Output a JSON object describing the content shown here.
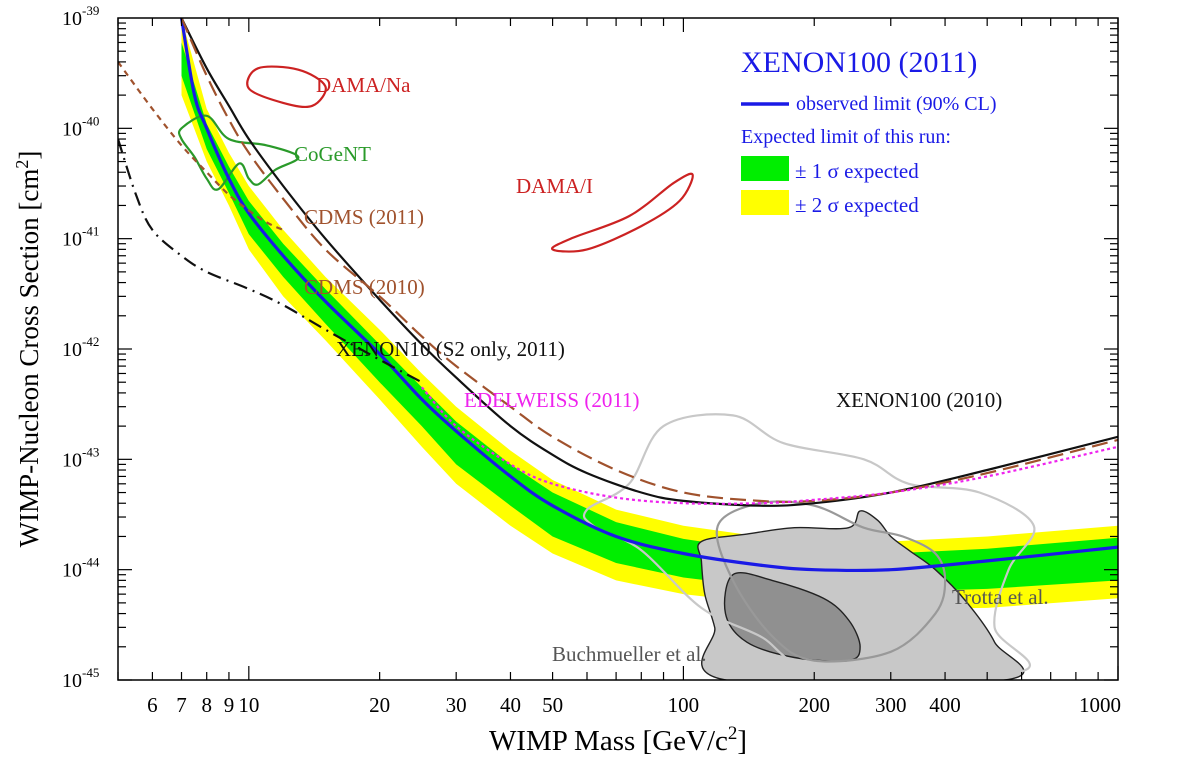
{
  "chart_data": {
    "type": "line",
    "title": "",
    "xlabel": "WIMP Mass [GeV/c2]",
    "ylabel": "WIMP-Nucleon Cross Section [cm2]",
    "x_scale": "log",
    "y_scale": "log",
    "xlim": [
      5,
      1000
    ],
    "ylim": [
      1e-45,
      1e-39
    ],
    "x_ticks": [
      6,
      7,
      8,
      9,
      10,
      20,
      30,
      40,
      50,
      100,
      200,
      300,
      400,
      1000
    ],
    "x_tick_labels": [
      "6",
      "7",
      "8",
      "9",
      "10",
      "20",
      "30",
      "40",
      "50",
      "100",
      "200",
      "300",
      "400",
      "1000"
    ],
    "y_ticks": [
      1e-45,
      1e-44,
      1e-43,
      1e-42,
      1e-41,
      1e-40,
      1e-39
    ],
    "y_tick_base": "10",
    "y_tick_exponents": [
      "-45",
      "-44",
      "-43",
      "-42",
      "-41",
      "-40",
      "-39"
    ],
    "legend": {
      "position": "top-right",
      "title": "XENON100 (2011)",
      "items": [
        {
          "label": "observed limit (90% CL)",
          "kind": "line",
          "color": "#1a1ae6"
        },
        {
          "label": "Expected limit of this run:",
          "kind": "text"
        },
        {
          "label": "± 1 σ expected",
          "kind": "box",
          "color": "#00ee00"
        },
        {
          "label": "± 2 σ expected",
          "kind": "box",
          "color": "#ffff00"
        }
      ]
    },
    "annotations": [
      {
        "label": "DAMA/Na",
        "color": "#cc2222"
      },
      {
        "label": "CoGeNT",
        "color": "#2a9a2a"
      },
      {
        "label": "DAMA/I",
        "color": "#cc2222"
      },
      {
        "label": "CDMS (2011)",
        "color": "#a0522d"
      },
      {
        "label": "CDMS (2010)",
        "color": "#a0522d"
      },
      {
        "label": "XENON10 (S2 only, 2011)",
        "color": "#111111"
      },
      {
        "label": "EDELWEISS (2011)",
        "color": "#ee22ee"
      },
      {
        "label": "XENON100 (2010)",
        "color": "#111111"
      },
      {
        "label": "Trotta et al.",
        "color": "#555555"
      },
      {
        "label": "Buchmueller et al.",
        "color": "#555555"
      }
    ],
    "series": [
      {
        "name": "observed limit (90% CL)",
        "style": "solid",
        "color": "#1a1ae6",
        "points": [
          [
            7,
            1e-39
          ],
          [
            7.5,
            2e-40
          ],
          [
            8,
            1e-40
          ],
          [
            9,
            3.5e-41
          ],
          [
            10,
            1.7e-41
          ],
          [
            12,
            7e-42
          ],
          [
            15,
            2.7e-42
          ],
          [
            20,
            9e-43
          ],
          [
            25,
            3.5e-43
          ],
          [
            30,
            1.8e-43
          ],
          [
            40,
            7e-44
          ],
          [
            50,
            3.8e-44
          ],
          [
            70,
            2e-44
          ],
          [
            100,
            1.4e-44
          ],
          [
            150,
            1.1e-44
          ],
          [
            200,
            1e-44
          ],
          [
            300,
            1e-44
          ],
          [
            500,
            1.2e-44
          ],
          [
            1000,
            1.6e-44
          ]
        ]
      },
      {
        "name": "XENON100 (2010)",
        "style": "solid",
        "color": "#111111",
        "points": [
          [
            7,
            1e-39
          ],
          [
            8,
            3.5e-40
          ],
          [
            9,
            1.6e-40
          ],
          [
            10,
            8e-41
          ],
          [
            12,
            3e-41
          ],
          [
            15,
            1e-41
          ],
          [
            20,
            2.8e-42
          ],
          [
            25,
            1.1e-42
          ],
          [
            30,
            5.5e-43
          ],
          [
            40,
            2e-43
          ],
          [
            50,
            1.1e-43
          ],
          [
            60,
            7.5e-44
          ],
          [
            80,
            5e-44
          ],
          [
            100,
            4.2e-44
          ],
          [
            150,
            3.8e-44
          ],
          [
            200,
            4e-44
          ],
          [
            300,
            5e-44
          ],
          [
            500,
            8e-44
          ],
          [
            1000,
            1.6e-43
          ]
        ]
      },
      {
        "name": "CDMS (2010)",
        "style": "long-dash",
        "color": "#a0522d",
        "points": [
          [
            7,
            1e-39
          ],
          [
            8,
            3e-40
          ],
          [
            9,
            1.2e-40
          ],
          [
            10,
            6e-41
          ],
          [
            12,
            2.3e-41
          ],
          [
            15,
            8e-42
          ],
          [
            20,
            3e-42
          ],
          [
            25,
            1.3e-42
          ],
          [
            30,
            7e-43
          ],
          [
            40,
            3e-43
          ],
          [
            50,
            1.6e-43
          ],
          [
            70,
            8e-44
          ],
          [
            100,
            5e-44
          ],
          [
            150,
            4.2e-44
          ],
          [
            200,
            4.2e-44
          ],
          [
            300,
            5e-44
          ],
          [
            500,
            7.5e-44
          ],
          [
            1000,
            1.5e-43
          ]
        ]
      },
      {
        "name": "CDMS (2011)",
        "style": "short-dash",
        "color": "#a0522d",
        "points": [
          [
            5,
            4e-40
          ],
          [
            6,
            1.5e-40
          ],
          [
            7,
            7e-41
          ],
          [
            8,
            4e-41
          ],
          [
            9,
            2.5e-41
          ],
          [
            10,
            1.8e-41
          ],
          [
            11,
            1.4e-41
          ],
          [
            12,
            1.2e-41
          ]
        ]
      },
      {
        "name": "XENON10 (S2 only, 2011)",
        "style": "dash-dot",
        "color": "#111111",
        "points": [
          [
            5,
            8e-41
          ],
          [
            5.5,
            2.5e-41
          ],
          [
            6,
            1.2e-41
          ],
          [
            7,
            7e-42
          ],
          [
            8,
            5e-42
          ],
          [
            10,
            3.5e-42
          ],
          [
            12,
            2.5e-42
          ],
          [
            15,
            1.5e-42
          ],
          [
            20,
            8e-43
          ],
          [
            25,
            5e-43
          ]
        ]
      },
      {
        "name": "EDELWEISS (2011)",
        "style": "dotted",
        "color": "#ee22ee",
        "points": [
          [
            25,
            4.5e-43
          ],
          [
            30,
            2e-43
          ],
          [
            40,
            9e-44
          ],
          [
            50,
            6e-44
          ],
          [
            70,
            4.5e-44
          ],
          [
            100,
            4e-44
          ],
          [
            150,
            4e-44
          ],
          [
            200,
            4.3e-44
          ],
          [
            300,
            5e-44
          ],
          [
            500,
            7e-44
          ],
          [
            1000,
            1.3e-43
          ]
        ]
      }
    ],
    "bands": [
      {
        "name": "± 2 σ expected",
        "color": "#ffff00",
        "upper": [
          [
            7,
            1e-39
          ],
          [
            8,
            1.5e-40
          ],
          [
            9,
            6e-41
          ],
          [
            10,
            3e-41
          ],
          [
            12,
            1.2e-41
          ],
          [
            15,
            4.5e-42
          ],
          [
            20,
            1.5e-42
          ],
          [
            25,
            6e-43
          ],
          [
            30,
            3e-43
          ],
          [
            40,
            1.2e-43
          ],
          [
            50,
            6.5e-44
          ],
          [
            70,
            3.5e-44
          ],
          [
            100,
            2.5e-44
          ],
          [
            150,
            2e-44
          ],
          [
            200,
            1.8e-44
          ],
          [
            300,
            1.8e-44
          ],
          [
            500,
            2e-44
          ],
          [
            1000,
            2.5e-44
          ]
        ],
        "lower": [
          [
            7,
            2e-40
          ],
          [
            8,
            5e-41
          ],
          [
            9,
            2e-41
          ],
          [
            10,
            8e-42
          ],
          [
            12,
            3e-42
          ],
          [
            15,
            1.2e-42
          ],
          [
            20,
            3.5e-43
          ],
          [
            25,
            1.3e-43
          ],
          [
            30,
            6e-44
          ],
          [
            40,
            2.5e-44
          ],
          [
            50,
            1.4e-44
          ],
          [
            70,
            8e-45
          ],
          [
            100,
            6e-45
          ],
          [
            150,
            5e-45
          ],
          [
            200,
            4.6e-45
          ],
          [
            300,
            4.4e-45
          ],
          [
            500,
            4.5e-45
          ],
          [
            1000,
            5.5e-45
          ]
        ]
      },
      {
        "name": "± 1 σ expected",
        "color": "#00ee00",
        "upper": [
          [
            7,
            6e-40
          ],
          [
            8,
            1.1e-40
          ],
          [
            9,
            4.5e-41
          ],
          [
            10,
            2.2e-41
          ],
          [
            12,
            9e-42
          ],
          [
            15,
            3.5e-42
          ],
          [
            20,
            1.1e-42
          ],
          [
            25,
            4.5e-43
          ],
          [
            30,
            2.2e-43
          ],
          [
            40,
            9e-44
          ],
          [
            50,
            5e-44
          ],
          [
            70,
            2.7e-44
          ],
          [
            100,
            1.9e-44
          ],
          [
            150,
            1.5e-44
          ],
          [
            200,
            1.4e-44
          ],
          [
            300,
            1.4e-44
          ],
          [
            500,
            1.55e-44
          ],
          [
            1000,
            1.95e-44
          ]
        ],
        "lower": [
          [
            7,
            3e-40
          ],
          [
            8,
            6.5e-41
          ],
          [
            9,
            2.6e-41
          ],
          [
            10,
            1.1e-41
          ],
          [
            12,
            4.5e-42
          ],
          [
            15,
            1.7e-42
          ],
          [
            20,
            5e-43
          ],
          [
            25,
            2e-43
          ],
          [
            30,
            9e-44
          ],
          [
            40,
            3.8e-44
          ],
          [
            50,
            2e-44
          ],
          [
            70,
            1.15e-44
          ],
          [
            100,
            8.5e-45
          ],
          [
            150,
            7e-45
          ],
          [
            200,
            6.5e-45
          ],
          [
            300,
            6.3e-45
          ],
          [
            500,
            6.7e-45
          ],
          [
            1000,
            8e-45
          ]
        ]
      }
    ],
    "regions": [
      {
        "name": "DAMA/Na",
        "color": "#cc2222",
        "fill": "none",
        "points": [
          [
            10.5,
            3.5e-40
          ],
          [
            13,
            3.4e-40
          ],
          [
            15,
            2.4e-40
          ],
          [
            14,
            1.6e-40
          ],
          [
            12,
            1.7e-40
          ],
          [
            10,
            2.3e-40
          ]
        ]
      },
      {
        "name": "CoGeNT",
        "color": "#2a9a2a",
        "fill": "none",
        "points": [
          [
            7,
            1e-40
          ],
          [
            8,
            1.3e-40
          ],
          [
            9,
            8e-41
          ],
          [
            11,
            7e-41
          ],
          [
            13,
            5.5e-41
          ],
          [
            11.5,
            4.2e-41
          ],
          [
            10.5,
            3.1e-41
          ],
          [
            10,
            3.5e-41
          ],
          [
            9.5,
            4.8e-41
          ],
          [
            8.5,
            2.8e-41
          ],
          [
            8,
            3.5e-41
          ],
          [
            7.5,
            5.5e-41
          ],
          [
            7,
            8e-41
          ]
        ]
      },
      {
        "name": "DAMA/I",
        "color": "#cc2222",
        "fill": "none",
        "points": [
          [
            55,
            1e-41
          ],
          [
            75,
            1.6e-41
          ],
          [
            95,
            3.2e-41
          ],
          [
            105,
            3.8e-41
          ],
          [
            98,
            2.2e-41
          ],
          [
            80,
            1.3e-41
          ],
          [
            60,
            8e-42
          ],
          [
            50,
            8e-42
          ]
        ]
      },
      {
        "name": "Buchmueller et al. (outer)",
        "color": "#222222",
        "fill": "#c8c8c8",
        "points": [
          [
            110,
            1.8e-44
          ],
          [
            140,
            2.1e-44
          ],
          [
            180,
            2.4e-44
          ],
          [
            240,
            2.4e-44
          ],
          [
            255,
            3.4e-44
          ],
          [
            280,
            2.8e-44
          ],
          [
            300,
            2e-44
          ],
          [
            330,
            1.5e-44
          ],
          [
            380,
            1e-44
          ],
          [
            450,
            5e-45
          ],
          [
            520,
            2.2e-45
          ],
          [
            550,
            1e-45
          ],
          [
            125,
            1e-45
          ],
          [
            118,
            3e-45
          ],
          [
            112,
            6e-45
          ],
          [
            110,
            1.2e-44
          ]
        ]
      },
      {
        "name": "Buchmueller et al. (inner)",
        "color": "#222222",
        "fill": "#909090",
        "points": [
          [
            130,
            9e-45
          ],
          [
            160,
            8e-45
          ],
          [
            210,
            5.5e-45
          ],
          [
            240,
            3.5e-45
          ],
          [
            255,
            2e-45
          ],
          [
            240,
            1.5e-45
          ],
          [
            180,
            1.6e-45
          ],
          [
            140,
            2.2e-45
          ],
          [
            125,
            4e-45
          ]
        ]
      },
      {
        "name": "Trotta et al. (95%)",
        "color": "#c8c8c8",
        "fill": "none",
        "points": [
          [
            60,
            3.5e-44
          ],
          [
            75,
            6e-44
          ],
          [
            90,
            2e-43
          ],
          [
            130,
            2.5e-43
          ],
          [
            170,
            1.4e-43
          ],
          [
            260,
            1e-43
          ],
          [
            330,
            6e-44
          ],
          [
            480,
            5e-44
          ],
          [
            640,
            2.5e-44
          ],
          [
            560,
            1e-44
          ],
          [
            520,
            3e-45
          ],
          [
            600,
            1.2e-45
          ],
          [
            210,
            1.2e-45
          ],
          [
            150,
            2.5e-45
          ],
          [
            110,
            4.5e-45
          ],
          [
            80,
            1.5e-44
          ],
          [
            62,
            2.5e-44
          ]
        ]
      },
      {
        "name": "Trotta et al. (68%)",
        "color": "#999999",
        "fill": "none",
        "points": [
          [
            120,
            2.5e-44
          ],
          [
            150,
            4e-44
          ],
          [
            200,
            3.8e-44
          ],
          [
            260,
            2.4e-44
          ],
          [
            320,
            2e-44
          ],
          [
            380,
            1.4e-44
          ],
          [
            400,
            8e-45
          ],
          [
            380,
            4e-45
          ],
          [
            300,
            1.8e-45
          ],
          [
            200,
            1.5e-45
          ],
          [
            160,
            2.5e-45
          ],
          [
            130,
            8e-45
          ]
        ]
      }
    ]
  }
}
